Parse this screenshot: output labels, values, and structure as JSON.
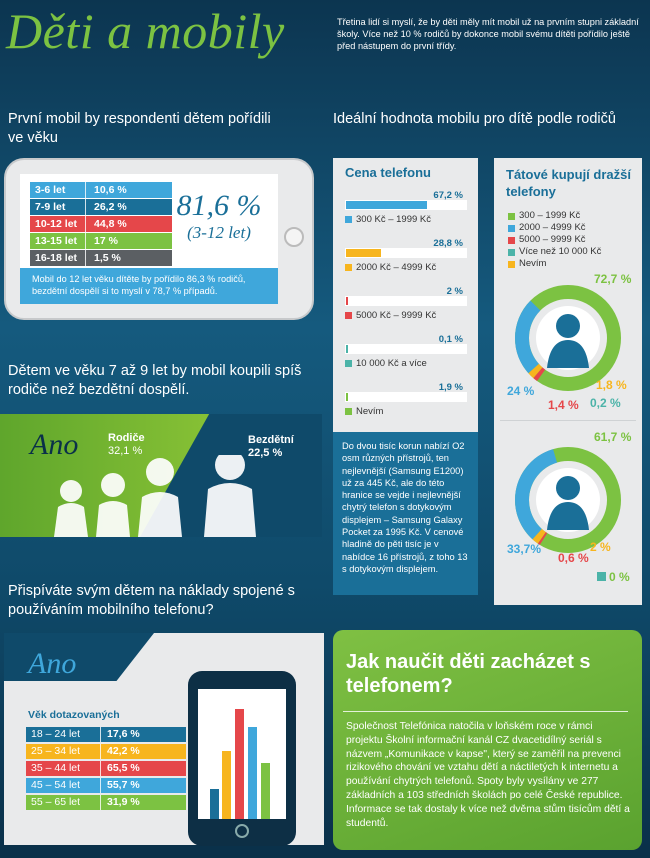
{
  "title": "Děti a mobily",
  "intro": "Třetina lidí si myslí, že by děti měly mít mobil už na prvním stupni základní školy. Více než 10 % rodičů by dokonce mobil svému dítěti pořídilo ještě před nástupem do první třídy.",
  "section1": {
    "heading": "První mobil by respondenti dětem pořídili ve věku",
    "rows": [
      {
        "age": "3-6 let",
        "value": "10,6 %",
        "color": "#3fa7db"
      },
      {
        "age": "7-9 let",
        "value": "26,2 %",
        "color": "#1a6f98"
      },
      {
        "age": "10-12 let",
        "value": "44,8 %",
        "color": "#e5474a"
      },
      {
        "age": "13-15 let",
        "value": "17 %",
        "color": "#7cc242"
      },
      {
        "age": "16-18 let",
        "value": "1,5 %",
        "color": "#5b5f63"
      }
    ],
    "big_value": "81,6 %",
    "big_sub": "(3-12 let)",
    "note": "Mobil do 12 let věku dítěte by pořídilo 86,3 % rodičů, bezdětní dospělí si to myslí v 78,7 % případů."
  },
  "section2": {
    "heading": "Dětem ve věku 7 až 9 let by mobil koupili spíš rodiče než bezdětní dospělí.",
    "ano": "Ano",
    "rodice_label": "Rodiče",
    "rodice_value": "32,1 %",
    "bezdetni_label": "Bezdětní",
    "bezdetni_value": "22,5 %"
  },
  "section3": {
    "heading": "Přispíváte svým dětem na náklady spojené s používáním mobilního telefonu?",
    "ano": "Ano",
    "table_title": "Věk dotazovaných",
    "rows": [
      {
        "age": "18 – 24 let",
        "value": "17,6 %",
        "color": "#1a6f98"
      },
      {
        "age": "25 – 34 let",
        "value": "42,2 %",
        "color": "#f7b51e"
      },
      {
        "age": "35 – 44 let",
        "value": "65,5 %",
        "color": "#e5474a"
      },
      {
        "age": "45 – 54 let",
        "value": "55,7 %",
        "color": "#3fa7db"
      },
      {
        "age": "55 – 65 let",
        "value": "31,9 %",
        "color": "#7cc242"
      }
    ]
  },
  "section4": {
    "heading": "Ideální hodnota mobilu pro dítě podle rodičů",
    "cena_title": "Cena telefonu",
    "cena": [
      {
        "label": "300 Kč – 1999 Kč",
        "value": "67,2 %",
        "pct": 67.2,
        "color": "#3fa7db"
      },
      {
        "label": "2000 Kč – 4999 Kč",
        "value": "28,8 %",
        "pct": 28.8,
        "color": "#f7b51e"
      },
      {
        "label": "5000 Kč – 9999 Kč",
        "value": "2 %",
        "pct": 2,
        "color": "#e5474a"
      },
      {
        "label": "10 000 Kč a více",
        "value": "0,1 %",
        "pct": 0.1,
        "color": "#4bb3a8"
      },
      {
        "label": "Nevím",
        "value": "1,9 %",
        "pct": 1.9,
        "color": "#7cc242"
      }
    ],
    "cena_note": "Do dvou tisíc korun nabízí O2 osm různých přístrojů, ten nejlevnější (Samsung E1200) už za 445 Kč, ale do této hranice se vejde i nejlevnější chytrý telefon s dotykovým displejem – Samsung Galaxy Pocket za 1995 Kč. V cenové hladině do pěti tisíc je v nabídce 16 přístrojů, z toho 13 s dotykovým displejem.",
    "tatove_title": "Tátové kupují dražší telefony",
    "legend": [
      {
        "label": "300 – 1999 Kč",
        "color": "#7cc242"
      },
      {
        "label": "2000 – 4999 Kč",
        "color": "#3fa7db"
      },
      {
        "label": "5000 – 9999 Kč",
        "color": "#e5474a"
      },
      {
        "label": "Více než 10 000 Kč",
        "color": "#4bb3a8"
      },
      {
        "label": "Nevím",
        "color": "#f7b51e"
      }
    ],
    "mom": {
      "green": "72,7 %",
      "blue": "24 %",
      "yellow": "1,8 %",
      "red": "1,4 %",
      "teal": "0,2 %"
    },
    "dad": {
      "green": "61,7 %",
      "blue": "33,7%",
      "yellow": "2 %",
      "red": "0,6 %",
      "teal": "0 %"
    }
  },
  "section5": {
    "heading": "Jak naučit děti zacházet s telefonem?",
    "text": "Společnost Telefónica natočila v loňském roce v rámci projektu Školní informační kanál CZ dvacetidílný seriál s názvem „Komunikace v kapse\", který se zaměřil na prevenci rizikového chování ve vztahu dětí a náctiletých k internetu a používání chytrých telefonů. Spoty byly vysílány ve 277 základních a 103 středních školách po celé České republice. Informace se tak dostaly k více než dvěma stům tisícům dětí a studentů."
  }
}
